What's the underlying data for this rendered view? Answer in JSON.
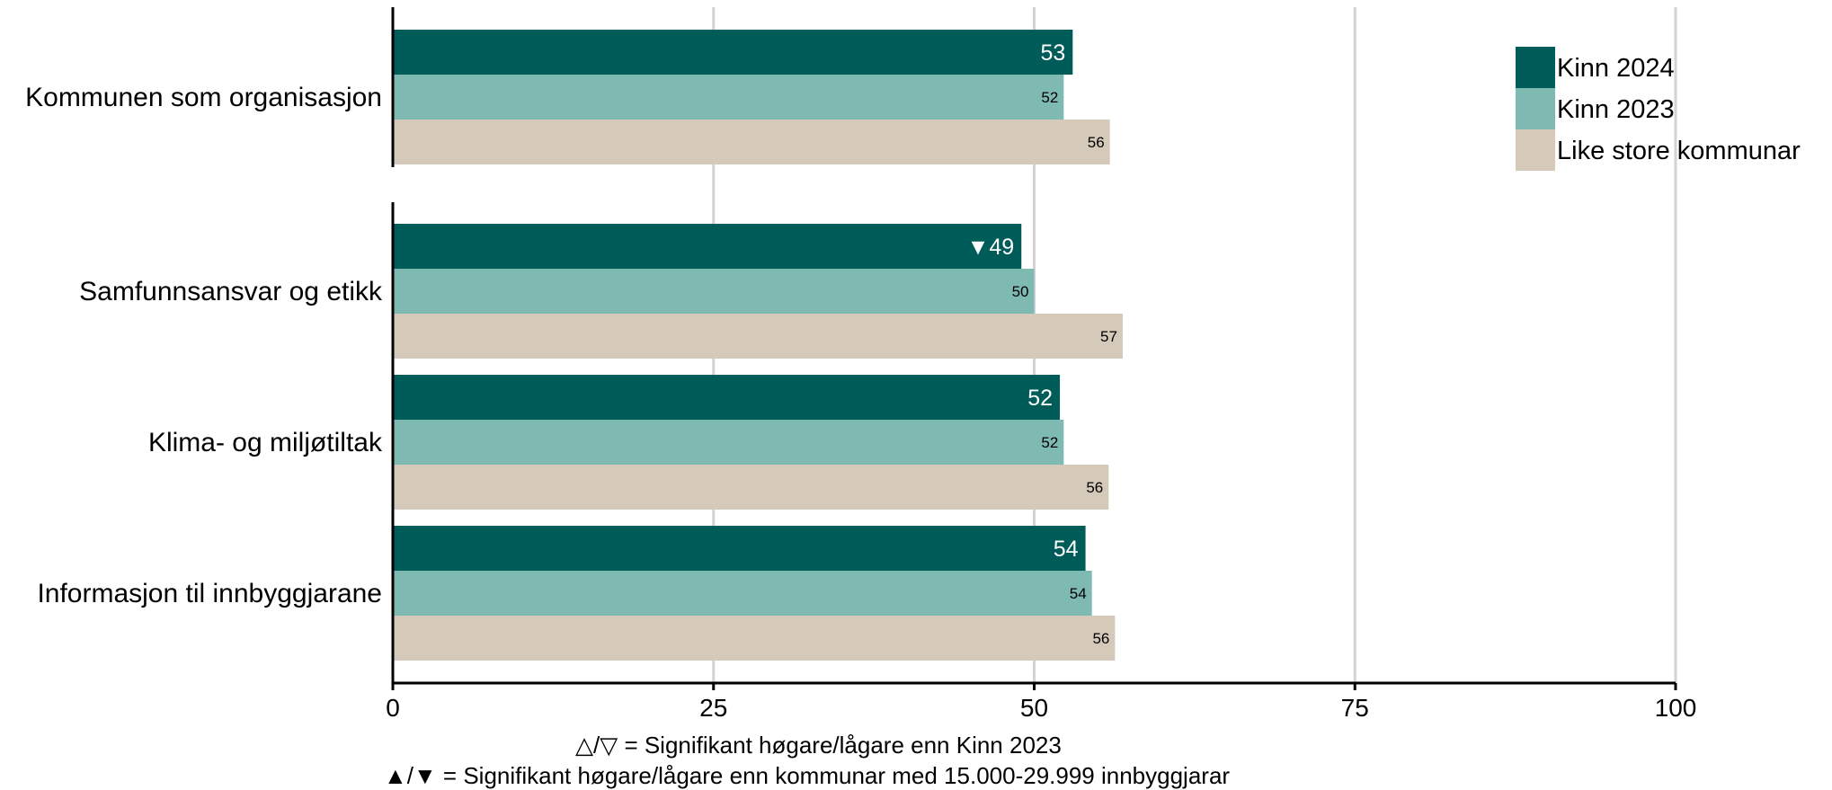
{
  "chart_data": {
    "type": "bar",
    "orientation": "horizontal",
    "categories": [
      "Kommunen som organisasjon",
      "Samfunnsansvar og etikk",
      "Klima- og miljøtiltak",
      "Informasjon til innbyggjarane"
    ],
    "groups": [
      [
        "Kommunen som organisasjon"
      ],
      [
        "Samfunnsansvar og etikk",
        "Klima- og miljøtiltak",
        "Informasjon til innbyggjarane"
      ]
    ],
    "series": [
      {
        "name": "Kinn 2024",
        "color": "#005c59",
        "values": [
          53,
          49,
          52,
          54
        ],
        "labels": [
          "53",
          "▼49",
          "52",
          "54"
        ]
      },
      {
        "name": "Kinn 2023",
        "color": "#7ebab2",
        "values": [
          52.3,
          50,
          52.3,
          54.5
        ],
        "labels": [
          "52",
          "50",
          "52",
          "54"
        ]
      },
      {
        "name": "Like store kommunar",
        "color": "#d5c9ba",
        "values": [
          55.9,
          56.9,
          55.8,
          56.3
        ],
        "labels": [
          "56",
          "57",
          "56",
          "56"
        ]
      }
    ],
    "xlim": [
      0,
      100
    ],
    "xticks": [
      "0",
      "25",
      "50",
      "75",
      "100"
    ],
    "grid": true,
    "legend_position": "top-right"
  },
  "notes": {
    "line1": "△/▽ = Signifikant høgare/lågare enn Kinn 2023",
    "line2": "▲/▼ = Signifikant høgare/lågare enn kommunar med 15.000-29.999 innbyggjarar"
  }
}
